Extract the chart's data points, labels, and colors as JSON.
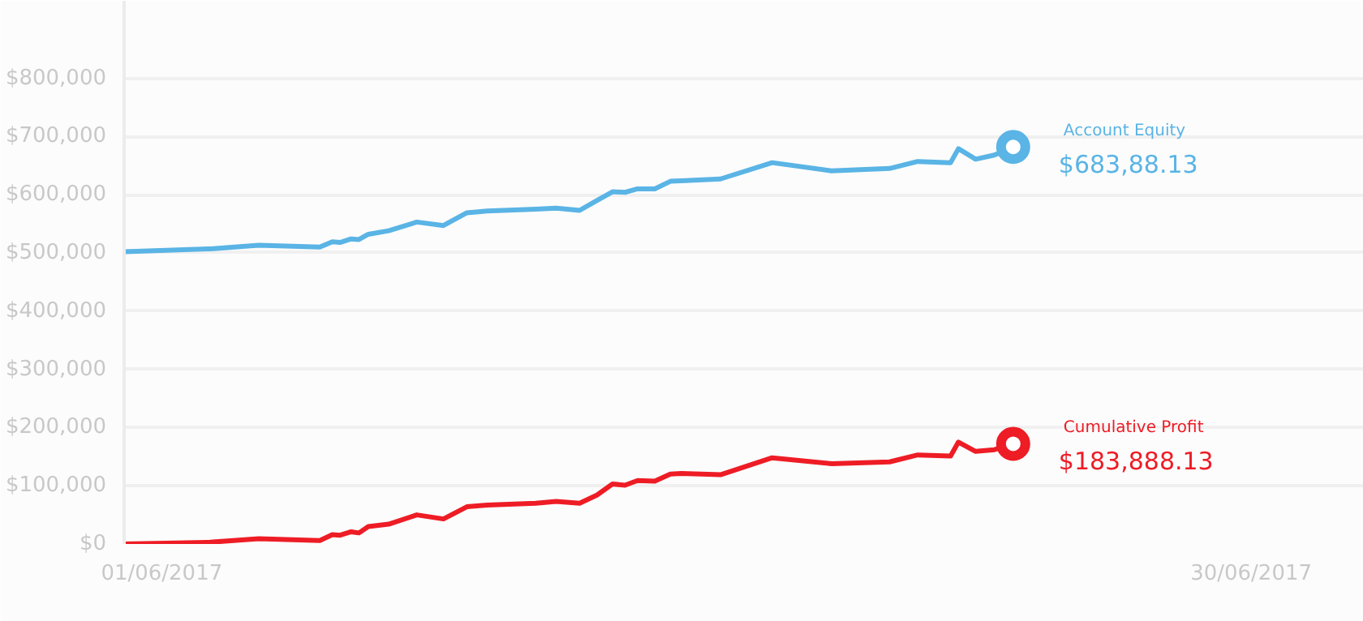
{
  "chart_data": {
    "type": "line",
    "xlim": [
      "2017-05-31T00:00",
      "2017-07-03T00:00"
    ],
    "xticks": [
      {
        "value": "2017-06-01",
        "label": "01/06/2017"
      },
      {
        "value": "2017-06-30",
        "label": "30/06/2017"
      }
    ],
    "ylim": [
      0,
      933000
    ],
    "yticks": [
      {
        "value": 0,
        "label": "$0"
      },
      {
        "value": 100000,
        "label": "$100,000"
      },
      {
        "value": 200000,
        "label": "$200,000"
      },
      {
        "value": 300000,
        "label": "$300,000"
      },
      {
        "value": 400000,
        "label": "$400,000"
      },
      {
        "value": 500000,
        "label": "$500,000"
      },
      {
        "value": 600000,
        "label": "$600,000"
      },
      {
        "value": 700000,
        "label": "$700,000"
      },
      {
        "value": 800000,
        "label": "$800,000"
      }
    ],
    "grid": "y",
    "legend": false,
    "line_style": "solid",
    "x": [
      "2017-05-31T00:00",
      "2017-06-02T07:00",
      "2017-06-03T14:00",
      "2017-06-05T05:00",
      "2017-06-05T13:00",
      "2017-06-05T18:00",
      "2017-06-06T01:00",
      "2017-06-06T06:00",
      "2017-06-06T12:00",
      "2017-06-07T01:00",
      "2017-06-07T19:00",
      "2017-06-08T12:00",
      "2017-06-09T03:00",
      "2017-06-09T16:00",
      "2017-06-10T23:00",
      "2017-06-11T12:00",
      "2017-06-12T03:00",
      "2017-06-12T14:00",
      "2017-06-13T00:00",
      "2017-06-13T08:00",
      "2017-06-13T16:00",
      "2017-06-14T03:00",
      "2017-06-14T13:00",
      "2017-06-14T20:00",
      "2017-06-15T21:00",
      "2017-06-17T06:00",
      "2017-06-18T20:00",
      "2017-06-20T09:00",
      "2017-06-21T03:00",
      "2017-06-22T00:00",
      "2017-06-22T05:00",
      "2017-06-22T16:00",
      "2017-06-23T04:00",
      "2017-06-23T16:00"
    ],
    "series": [
      {
        "name": "Account Equity",
        "color": "#5ab4e5",
        "values": [
          502000,
          507000,
          513000,
          510000,
          519000,
          518000,
          524000,
          523000,
          532000,
          538000,
          553000,
          547000,
          569000,
          572000,
          575000,
          577000,
          573000,
          590000,
          605000,
          604000,
          610000,
          610000,
          623000,
          624000,
          627000,
          655000,
          641000,
          645000,
          657000,
          655000,
          679000,
          661000,
          668000,
          682000
        ]
      },
      {
        "name": "Cumulative Profit",
        "color": "#ee1c25",
        "values": [
          0,
          3000,
          9000,
          6000,
          16000,
          15000,
          21000,
          19000,
          30000,
          34000,
          50000,
          43000,
          64000,
          67000,
          70000,
          73000,
          70000,
          84000,
          103000,
          101000,
          109000,
          108000,
          120000,
          121000,
          119000,
          148000,
          138000,
          141000,
          153000,
          151000,
          175000,
          159000,
          162000,
          172000
        ]
      }
    ],
    "annotations": [
      {
        "text": "$683,88.13",
        "x": "2017-06-23T16:00",
        "y": 682000
      },
      {
        "text": "$183,888.13",
        "x": "2017-06-23T16:00",
        "y": 172000
      }
    ]
  }
}
